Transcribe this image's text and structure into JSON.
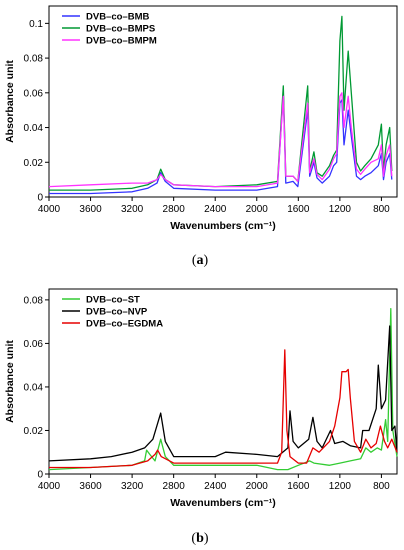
{
  "chart_data": [
    {
      "type": "line",
      "panel_label_open": "(",
      "panel_label_letter": "a",
      "panel_label_close": ")",
      "xlabel": "Wavenumbers (cm⁻¹)",
      "ylabel": "Absorbance unit",
      "xlim": [
        4000,
        650
      ],
      "ylim": [
        0,
        0.11
      ],
      "x_ticks": [
        4000,
        3600,
        3200,
        2800,
        2400,
        2000,
        1600,
        1200,
        800
      ],
      "y_ticks": [
        0,
        0.02,
        0.04,
        0.06,
        0.08,
        0.1
      ],
      "y_tick_labels": [
        "0",
        "0.02",
        "0.04",
        "0.06",
        "0.08",
        "0.1"
      ],
      "legend_position": "top-left",
      "grid": false,
      "series": [
        {
          "name": "DVB–co–BMB",
          "color": "#3333ff",
          "points": [
            [
              4000,
              0.002
            ],
            [
              3600,
              0.002
            ],
            [
              3200,
              0.003
            ],
            [
              3050,
              0.005
            ],
            [
              2960,
              0.008
            ],
            [
              2925,
              0.014
            ],
            [
              2880,
              0.009
            ],
            [
              2800,
              0.005
            ],
            [
              2400,
              0.004
            ],
            [
              2000,
              0.004
            ],
            [
              1800,
              0.006
            ],
            [
              1745,
              0.06
            ],
            [
              1720,
              0.008
            ],
            [
              1650,
              0.009
            ],
            [
              1605,
              0.006
            ],
            [
              1510,
              0.05
            ],
            [
              1490,
              0.012
            ],
            [
              1450,
              0.02
            ],
            [
              1420,
              0.011
            ],
            [
              1370,
              0.008
            ],
            [
              1300,
              0.012
            ],
            [
              1260,
              0.018
            ],
            [
              1230,
              0.02
            ],
            [
              1200,
              0.054
            ],
            [
              1180,
              0.056
            ],
            [
              1160,
              0.03
            ],
            [
              1120,
              0.05
            ],
            [
              1090,
              0.035
            ],
            [
              1040,
              0.012
            ],
            [
              1000,
              0.01
            ],
            [
              960,
              0.012
            ],
            [
              900,
              0.014
            ],
            [
              830,
              0.018
            ],
            [
              800,
              0.025
            ],
            [
              780,
              0.01
            ],
            [
              755,
              0.02
            ],
            [
              720,
              0.025
            ],
            [
              700,
              0.01
            ]
          ]
        },
        {
          "name": "DVB–co–BMPS",
          "color": "#009933",
          "points": [
            [
              4000,
              0.004
            ],
            [
              3600,
              0.004
            ],
            [
              3200,
              0.005
            ],
            [
              3050,
              0.007
            ],
            [
              2960,
              0.01
            ],
            [
              2925,
              0.016
            ],
            [
              2880,
              0.01
            ],
            [
              2800,
              0.007
            ],
            [
              2400,
              0.006
            ],
            [
              2000,
              0.007
            ],
            [
              1800,
              0.009
            ],
            [
              1745,
              0.064
            ],
            [
              1720,
              0.012
            ],
            [
              1650,
              0.012
            ],
            [
              1605,
              0.009
            ],
            [
              1510,
              0.064
            ],
            [
              1490,
              0.015
            ],
            [
              1450,
              0.026
            ],
            [
              1420,
              0.014
            ],
            [
              1370,
              0.012
            ],
            [
              1300,
              0.018
            ],
            [
              1260,
              0.024
            ],
            [
              1230,
              0.027
            ],
            [
              1200,
              0.09
            ],
            [
              1180,
              0.104
            ],
            [
              1160,
              0.05
            ],
            [
              1120,
              0.084
            ],
            [
              1090,
              0.06
            ],
            [
              1040,
              0.02
            ],
            [
              1000,
              0.015
            ],
            [
              960,
              0.018
            ],
            [
              900,
              0.022
            ],
            [
              830,
              0.03
            ],
            [
              800,
              0.042
            ],
            [
              780,
              0.015
            ],
            [
              755,
              0.03
            ],
            [
              720,
              0.04
            ],
            [
              700,
              0.015
            ]
          ]
        },
        {
          "name": "DVB–co–BMPM",
          "color": "#ff33ff",
          "points": [
            [
              4000,
              0.006
            ],
            [
              3600,
              0.007
            ],
            [
              3200,
              0.008
            ],
            [
              3050,
              0.008
            ],
            [
              2960,
              0.01
            ],
            [
              2925,
              0.013
            ],
            [
              2880,
              0.01
            ],
            [
              2800,
              0.007
            ],
            [
              2400,
              0.006
            ],
            [
              2000,
              0.006
            ],
            [
              1800,
              0.008
            ],
            [
              1745,
              0.058
            ],
            [
              1720,
              0.012
            ],
            [
              1650,
              0.012
            ],
            [
              1605,
              0.009
            ],
            [
              1510,
              0.054
            ],
            [
              1490,
              0.014
            ],
            [
              1450,
              0.022
            ],
            [
              1420,
              0.013
            ],
            [
              1370,
              0.01
            ],
            [
              1300,
              0.016
            ],
            [
              1260,
              0.022
            ],
            [
              1230,
              0.025
            ],
            [
              1200,
              0.058
            ],
            [
              1180,
              0.06
            ],
            [
              1160,
              0.04
            ],
            [
              1120,
              0.058
            ],
            [
              1090,
              0.04
            ],
            [
              1040,
              0.016
            ],
            [
              1000,
              0.013
            ],
            [
              960,
              0.016
            ],
            [
              900,
              0.02
            ],
            [
              830,
              0.022
            ],
            [
              800,
              0.03
            ],
            [
              780,
              0.012
            ],
            [
              755,
              0.024
            ],
            [
              720,
              0.03
            ],
            [
              700,
              0.012
            ]
          ]
        }
      ]
    },
    {
      "type": "line",
      "panel_label_open": "(",
      "panel_label_letter": "b",
      "panel_label_close": ")",
      "xlabel": "Wavenumbers (cm⁻¹)",
      "ylabel": "Absorbance unit",
      "xlim": [
        4000,
        650
      ],
      "ylim": [
        0,
        0.085
      ],
      "x_ticks": [
        4000,
        3600,
        3200,
        2800,
        2400,
        2000,
        1600,
        1200,
        800
      ],
      "y_ticks": [
        0,
        0.02,
        0.04,
        0.06,
        0.08
      ],
      "y_tick_labels": [
        "0",
        "0.02",
        "0.04",
        "0.06",
        "0.08"
      ],
      "legend_position": "top-left",
      "grid": false,
      "series": [
        {
          "name": "DVB–co–ST",
          "color": "#33cc33",
          "points": [
            [
              4000,
              0.002
            ],
            [
              3600,
              0.003
            ],
            [
              3200,
              0.004
            ],
            [
              3080,
              0.006
            ],
            [
              3060,
              0.011
            ],
            [
              3030,
              0.009
            ],
            [
              2980,
              0.006
            ],
            [
              2925,
              0.016
            ],
            [
              2880,
              0.008
            ],
            [
              2800,
              0.004
            ],
            [
              2400,
              0.004
            ],
            [
              2000,
              0.004
            ],
            [
              1800,
              0.002
            ],
            [
              1700,
              0.002
            ],
            [
              1600,
              0.004
            ],
            [
              1490,
              0.006
            ],
            [
              1450,
              0.005
            ],
            [
              1300,
              0.004
            ],
            [
              1200,
              0.005
            ],
            [
              1100,
              0.006
            ],
            [
              1000,
              0.007
            ],
            [
              950,
              0.012
            ],
            [
              900,
              0.01
            ],
            [
              840,
              0.012
            ],
            [
              800,
              0.011
            ],
            [
              760,
              0.025
            ],
            [
              740,
              0.015
            ],
            [
              710,
              0.076
            ],
            [
              690,
              0.02
            ],
            [
              650,
              0.008
            ]
          ]
        },
        {
          "name": "DVB–co–NVP",
          "color": "#000000",
          "points": [
            [
              4000,
              0.006
            ],
            [
              3600,
              0.007
            ],
            [
              3400,
              0.008
            ],
            [
              3200,
              0.01
            ],
            [
              3080,
              0.012
            ],
            [
              3000,
              0.016
            ],
            [
              2925,
              0.028
            ],
            [
              2880,
              0.015
            ],
            [
              2800,
              0.008
            ],
            [
              2400,
              0.008
            ],
            [
              2300,
              0.01
            ],
            [
              2000,
              0.009
            ],
            [
              1800,
              0.008
            ],
            [
              1700,
              0.012
            ],
            [
              1680,
              0.029
            ],
            [
              1650,
              0.015
            ],
            [
              1600,
              0.012
            ],
            [
              1500,
              0.016
            ],
            [
              1460,
              0.026
            ],
            [
              1420,
              0.015
            ],
            [
              1370,
              0.012
            ],
            [
              1290,
              0.02
            ],
            [
              1250,
              0.014
            ],
            [
              1170,
              0.015
            ],
            [
              1100,
              0.013
            ],
            [
              1000,
              0.012
            ],
            [
              980,
              0.02
            ],
            [
              920,
              0.02
            ],
            [
              850,
              0.03
            ],
            [
              830,
              0.05
            ],
            [
              800,
              0.03
            ],
            [
              760,
              0.034
            ],
            [
              720,
              0.068
            ],
            [
              700,
              0.02
            ],
            [
              670,
              0.022
            ],
            [
              650,
              0.01
            ]
          ]
        },
        {
          "name": "DVB–co–EGDMA",
          "color": "#e60000",
          "points": [
            [
              4000,
              0.003
            ],
            [
              3600,
              0.003
            ],
            [
              3200,
              0.004
            ],
            [
              3050,
              0.006
            ],
            [
              2980,
              0.009
            ],
            [
              2955,
              0.011
            ],
            [
              2920,
              0.008
            ],
            [
              2800,
              0.005
            ],
            [
              2400,
              0.005
            ],
            [
              2000,
              0.005
            ],
            [
              1800,
              0.005
            ],
            [
              1760,
              0.01
            ],
            [
              1730,
              0.057
            ],
            [
              1710,
              0.02
            ],
            [
              1680,
              0.008
            ],
            [
              1600,
              0.005
            ],
            [
              1520,
              0.005
            ],
            [
              1460,
              0.012
            ],
            [
              1400,
              0.01
            ],
            [
              1300,
              0.015
            ],
            [
              1250,
              0.022
            ],
            [
              1200,
              0.035
            ],
            [
              1180,
              0.047
            ],
            [
              1140,
              0.047
            ],
            [
              1120,
              0.048
            ],
            [
              1100,
              0.035
            ],
            [
              1060,
              0.015
            ],
            [
              1000,
              0.01
            ],
            [
              950,
              0.016
            ],
            [
              900,
              0.012
            ],
            [
              850,
              0.014
            ],
            [
              810,
              0.022
            ],
            [
              770,
              0.015
            ],
            [
              740,
              0.012
            ],
            [
              700,
              0.016
            ],
            [
              650,
              0.01
            ]
          ]
        }
      ]
    }
  ]
}
